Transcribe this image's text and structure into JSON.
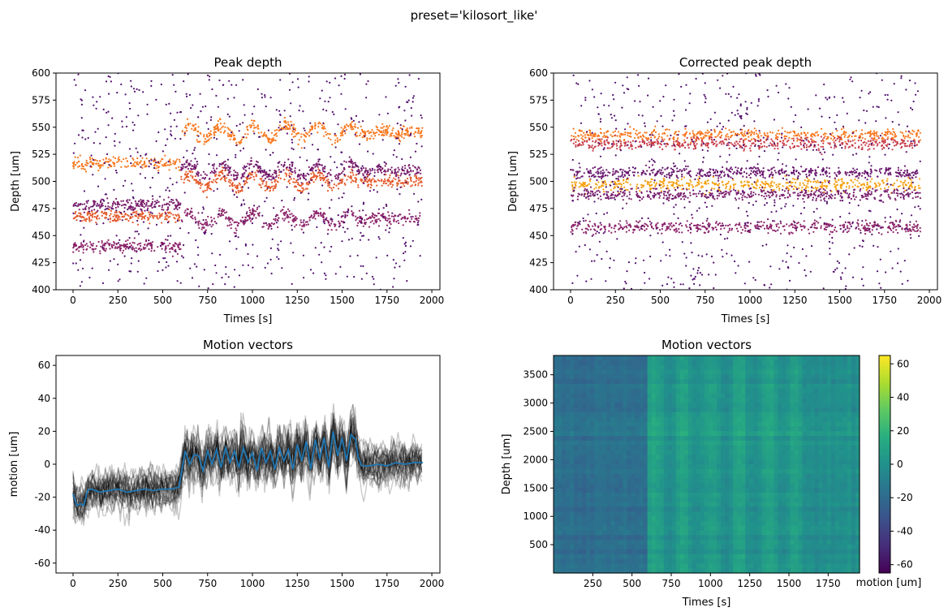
{
  "figure": {
    "suptitle": "preset='kilosort_like'"
  },
  "chart_data": [
    {
      "type": "scatter",
      "title": "Peak depth",
      "xlabel": "Times [s]",
      "ylabel": "Depth [um]",
      "xlim": [
        -95,
        2045
      ],
      "ylim": [
        400,
        600
      ],
      "xticks": [
        0,
        250,
        500,
        750,
        1000,
        1250,
        1500,
        1750,
        2000
      ],
      "yticks": [
        400,
        425,
        450,
        475,
        500,
        525,
        550,
        575,
        600
      ],
      "colormap": "inferno",
      "clusters": [
        {
          "t_start": 0,
          "t_end": 600,
          "depth": 517,
          "depth_after": 545,
          "color": "#f8761c"
        },
        {
          "t_start": 0,
          "t_end": 600,
          "depth": 478,
          "depth_after": 510,
          "color": "#7a1f6d"
        },
        {
          "t_start": 0,
          "t_end": 600,
          "depth": 468,
          "depth_after": 500,
          "color": "#e4592a"
        },
        {
          "t_start": 0,
          "t_end": 600,
          "depth": 440,
          "depth_after": 465,
          "color": "#8b2268"
        }
      ]
    },
    {
      "type": "scatter",
      "title": "Corrected peak depth",
      "xlabel": "Times [s]",
      "ylabel": "Depth [um]",
      "xlim": [
        -95,
        2045
      ],
      "ylim": [
        400,
        600
      ],
      "xticks": [
        0,
        250,
        500,
        750,
        1000,
        1250,
        1500,
        1750,
        2000
      ],
      "yticks": [
        400,
        425,
        450,
        475,
        500,
        525,
        550,
        575,
        600
      ],
      "colormap": "inferno",
      "clusters": [
        {
          "depth": 543,
          "color": "#f8761c"
        },
        {
          "depth": 535,
          "color": "#c73d4a"
        },
        {
          "depth": 508,
          "color": "#6a176e"
        },
        {
          "depth": 497,
          "color": "#f5a011"
        },
        {
          "depth": 488,
          "color": "#7a1f6d"
        },
        {
          "depth": 458,
          "color": "#8b2268"
        }
      ]
    },
    {
      "type": "line",
      "title": "Motion vectors",
      "xlabel": "",
      "ylabel": "motion [um]",
      "xlim": [
        -95,
        2045
      ],
      "ylim": [
        -66,
        66
      ],
      "xticks": [
        0,
        250,
        500,
        750,
        1000,
        1250,
        1500,
        1750,
        2000
      ],
      "yticks": [
        -60,
        -40,
        -20,
        0,
        20,
        40,
        60
      ],
      "bundle_color": "#000000",
      "mean_color": "#1f77b4",
      "mean_series": {
        "x": [
          0,
          20,
          40,
          60,
          80,
          100,
          150,
          200,
          250,
          300,
          350,
          400,
          450,
          500,
          550,
          590,
          600,
          625,
          650,
          675,
          700,
          725,
          750,
          775,
          800,
          825,
          850,
          875,
          900,
          925,
          950,
          975,
          1000,
          1025,
          1050,
          1075,
          1100,
          1125,
          1150,
          1175,
          1200,
          1225,
          1250,
          1275,
          1300,
          1325,
          1350,
          1375,
          1400,
          1425,
          1450,
          1475,
          1500,
          1525,
          1550,
          1575,
          1590,
          1610,
          1650,
          1700,
          1750,
          1800,
          1850,
          1900,
          1950
        ],
        "y": [
          -18,
          -25,
          -24,
          -25,
          -16,
          -15,
          -17,
          -16,
          -15,
          -17,
          -16,
          -15,
          -16,
          -15,
          -15,
          -14,
          -8,
          8,
          0,
          6,
          5,
          -4,
          8,
          0,
          9,
          -2,
          10,
          1,
          8,
          -2,
          10,
          1,
          7,
          -4,
          10,
          1,
          8,
          -3,
          10,
          2,
          9,
          -3,
          12,
          2,
          14,
          -3,
          15,
          3,
          16,
          -2,
          20,
          5,
          16,
          2,
          18,
          15,
          4,
          -1,
          -1,
          0,
          -1,
          1,
          0,
          1,
          1
        ]
      }
    },
    {
      "type": "heatmap",
      "title": "Motion vectors",
      "xlabel": "Times [s]",
      "ylabel": "Depth [um]",
      "xlim": [
        0,
        1950
      ],
      "ylim": [
        0,
        3840
      ],
      "xticks": [
        250,
        500,
        750,
        1000,
        1250,
        1500,
        1750
      ],
      "yticks": [
        500,
        1000,
        1500,
        2000,
        2500,
        3000,
        3500
      ],
      "colormap": "viridis",
      "colorbar": {
        "label": "motion [um]",
        "range": [
          -65,
          65
        ],
        "ticks": [
          -60,
          -40,
          -20,
          0,
          20,
          40,
          60
        ]
      }
    }
  ]
}
